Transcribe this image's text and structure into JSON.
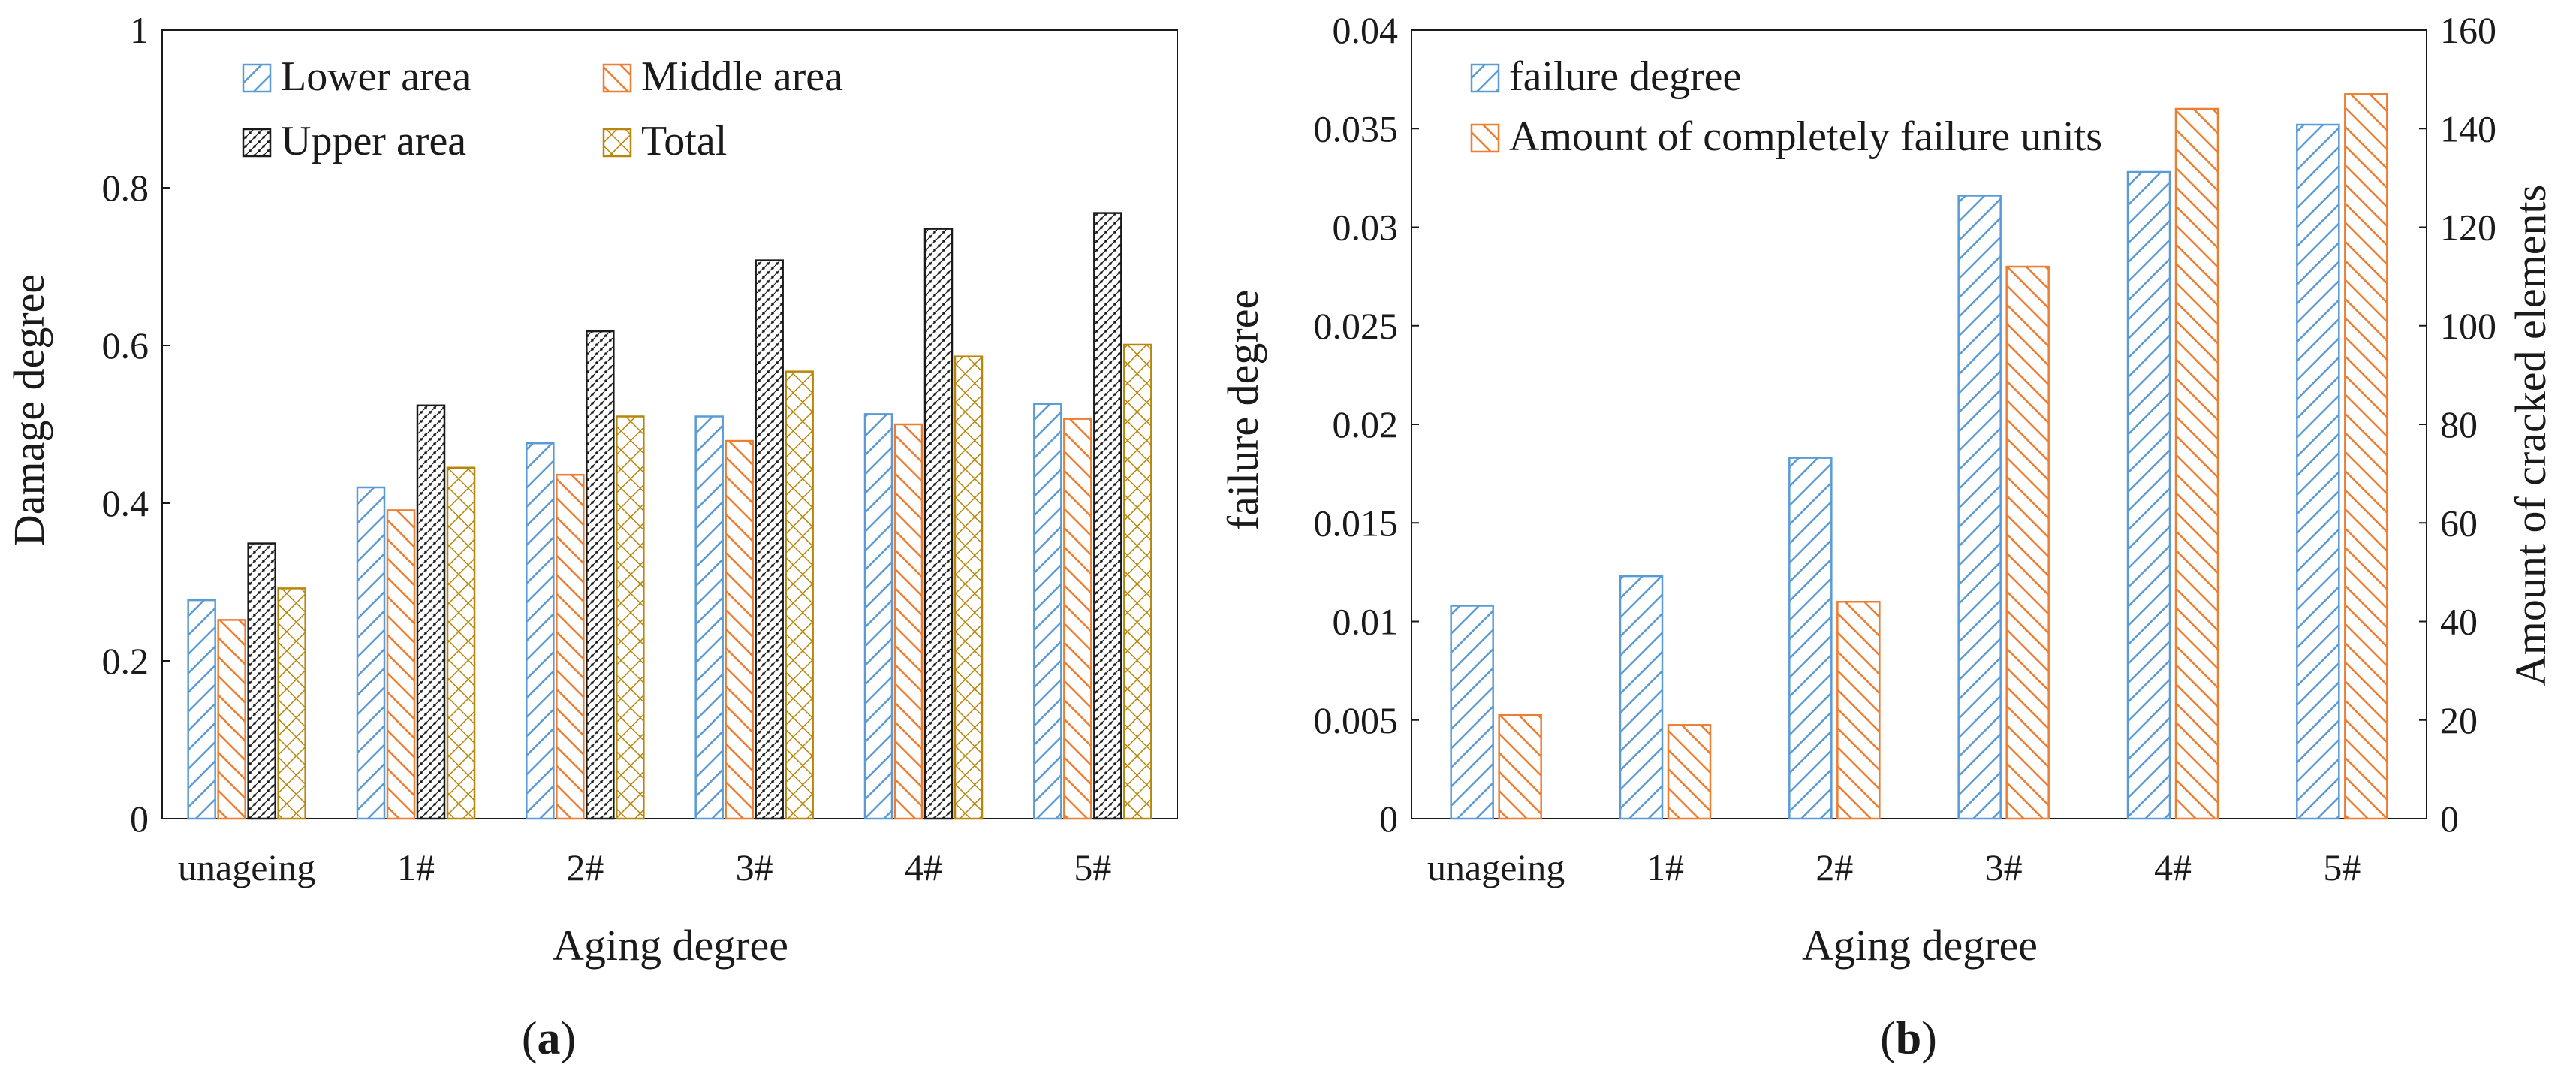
{
  "colors": {
    "lower": "#5b9bd5",
    "middle": "#ed7d31",
    "upper": "#1a1a1a",
    "total": "#b8860b",
    "failure_degree": "#5b9bd5",
    "failure_units": "#ed7d31",
    "axis": "#1a1a1a"
  },
  "chart_data": [
    {
      "type": "bar",
      "panel_label": "(a)",
      "panel_label_parts": {
        "open": "(",
        "letter": "a",
        "close": ")"
      },
      "title": "",
      "xlabel": "Aging degree",
      "ylabel": "Damage degree",
      "ylim": [
        0,
        1
      ],
      "yticks": [
        "0",
        "0.2",
        "0.4",
        "0.6",
        "0.8",
        "1"
      ],
      "categories": [
        "unageing",
        "1#",
        "2#",
        "3#",
        "4#",
        "5#"
      ],
      "legend_position": "top-left",
      "series": [
        {
          "name": "Lower area",
          "color_key": "lower",
          "pattern": "diag-up",
          "values": [
            0.277,
            0.42,
            0.476,
            0.51,
            0.513,
            0.526
          ]
        },
        {
          "name": "Middle area",
          "color_key": "middle",
          "pattern": "diag-down",
          "values": [
            0.252,
            0.391,
            0.436,
            0.479,
            0.5,
            0.507
          ]
        },
        {
          "name": "Upper area",
          "color_key": "upper",
          "pattern": "dots",
          "values": [
            0.349,
            0.524,
            0.618,
            0.708,
            0.748,
            0.768
          ]
        },
        {
          "name": "Total",
          "color_key": "total",
          "pattern": "cross",
          "values": [
            0.292,
            0.445,
            0.51,
            0.567,
            0.586,
            0.601
          ]
        }
      ]
    },
    {
      "type": "bar",
      "panel_label": "(b)",
      "panel_label_parts": {
        "open": "(",
        "letter": "b",
        "close": ")"
      },
      "title": "",
      "xlabel": "Aging degree",
      "ylabel": "failure degree",
      "ylabel_right": "Amount of cracked elements",
      "ylim": [
        0,
        0.04
      ],
      "ylim_right": [
        0,
        160
      ],
      "yticks": [
        "0",
        "0.005",
        "0.01",
        "0.015",
        "0.02",
        "0.025",
        "0.03",
        "0.035",
        "0.04"
      ],
      "yticks_right": [
        "0",
        "20",
        "40",
        "60",
        "80",
        "100",
        "120",
        "140",
        "160"
      ],
      "categories": [
        "unageing",
        "1#",
        "2#",
        "3#",
        "4#",
        "5#"
      ],
      "legend_position": "top-left",
      "series": [
        {
          "name": "failure degree",
          "axis": "left",
          "color_key": "failure_degree",
          "pattern": "diag-up",
          "values": [
            0.0108,
            0.0123,
            0.0183,
            0.0316,
            0.0328,
            0.0352
          ]
        },
        {
          "name": "Amount of completely failure units",
          "axis": "right",
          "color_key": "failure_units",
          "pattern": "diag-down",
          "values": [
            21,
            19,
            44,
            112,
            144,
            147
          ]
        }
      ]
    }
  ]
}
